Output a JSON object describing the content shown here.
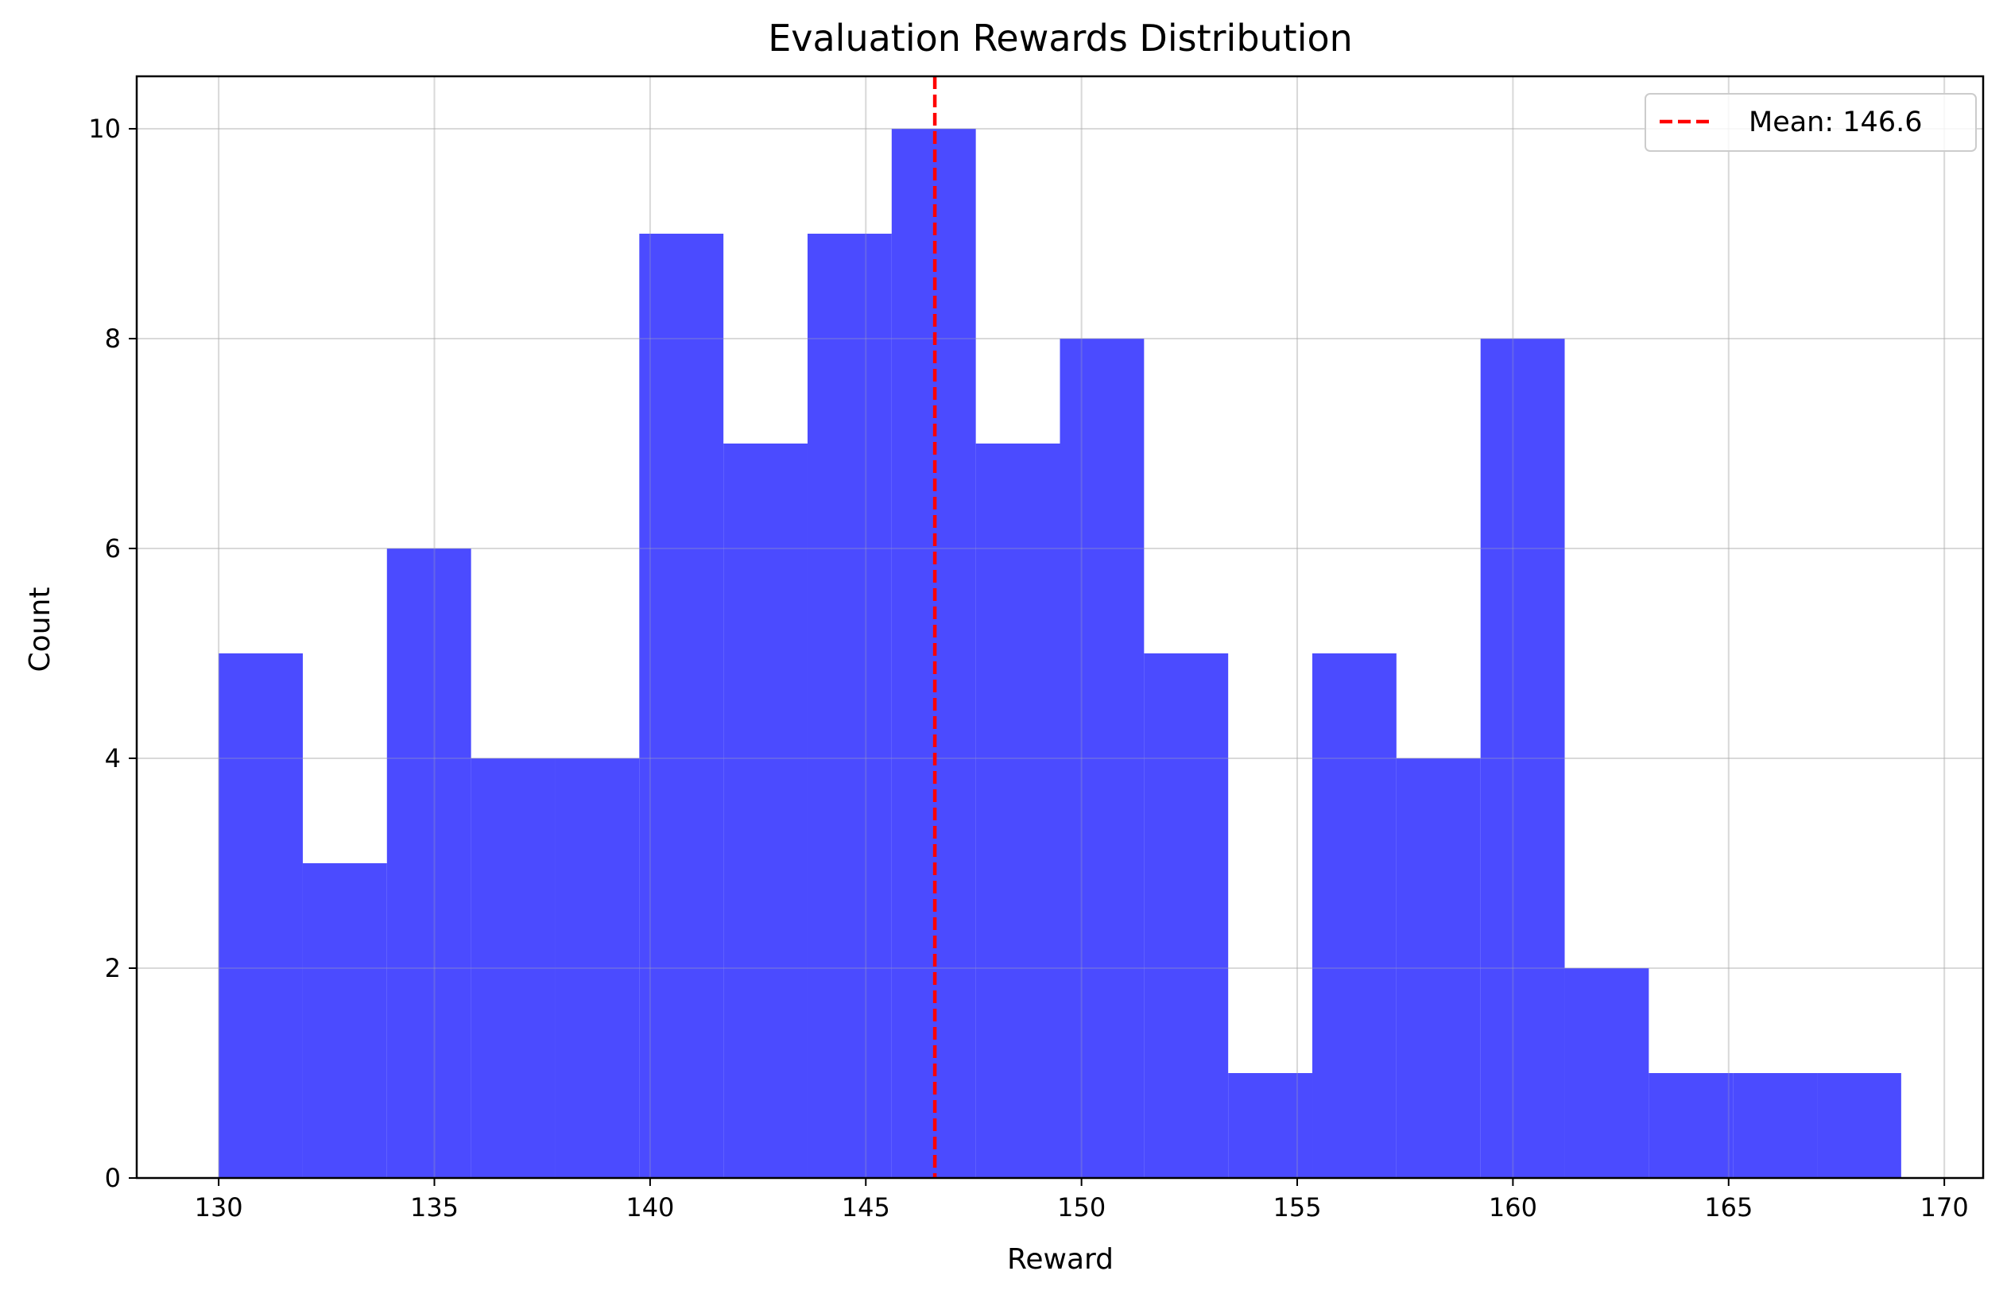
{
  "chart_data": {
    "type": "bar",
    "title": "Evaluation Rewards Distribution",
    "xlabel": "Reward",
    "ylabel": "Count",
    "xlim": [
      128.1,
      170.9
    ],
    "ylim": [
      0,
      10.5
    ],
    "xticks": [
      130,
      135,
      140,
      145,
      150,
      155,
      160,
      165,
      170
    ],
    "yticks": [
      0,
      2,
      4,
      6,
      8,
      10
    ],
    "grid": true,
    "legend_position": "upper right",
    "bin_edges": [
      130.0,
      131.95,
      133.9,
      135.85,
      137.8,
      139.75,
      141.7,
      143.65,
      145.6,
      147.55,
      149.5,
      151.45,
      153.4,
      155.35,
      157.3,
      159.25,
      161.2,
      163.15,
      165.1,
      167.05,
      169.0
    ],
    "counts": [
      5,
      3,
      6,
      4,
      4,
      9,
      7,
      9,
      10,
      7,
      8,
      5,
      1,
      5,
      4,
      8,
      2,
      1,
      1,
      1
    ],
    "bar_color": "#4B4BFF",
    "mean": {
      "value": 146.6,
      "label": "Mean: 146.6",
      "color": "#FF0000"
    }
  }
}
